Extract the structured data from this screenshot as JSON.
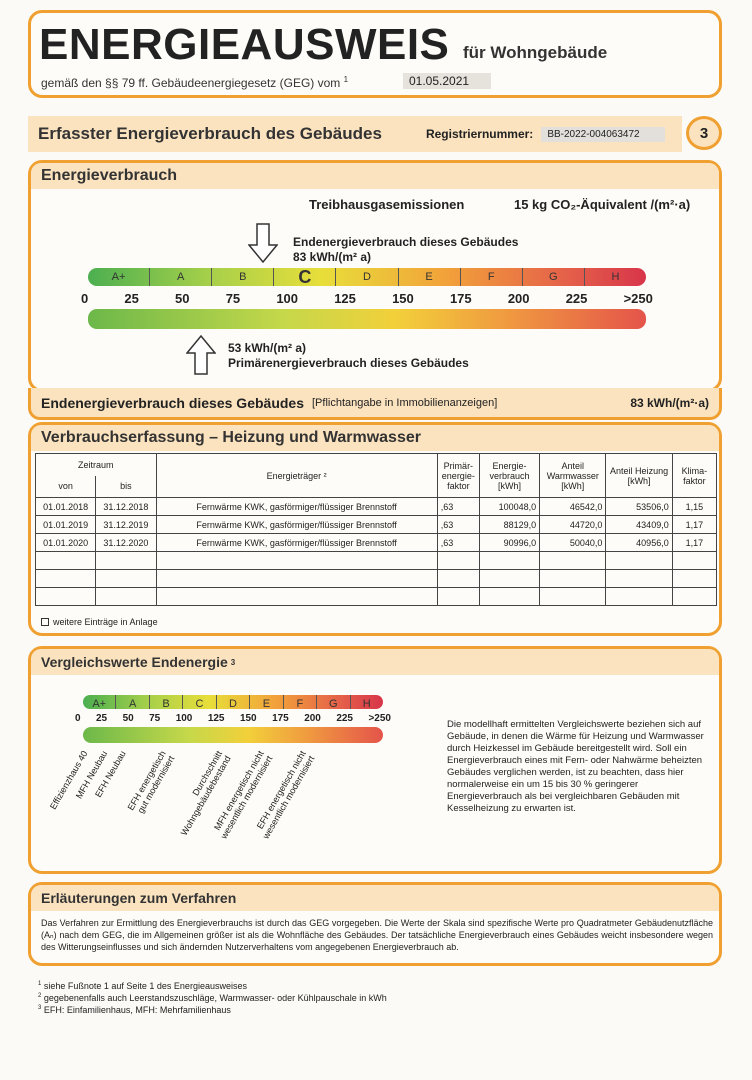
{
  "header": {
    "title": "ENERGIEAUSWEIS",
    "subtitle": "für Wohngebäude",
    "law_text": "gemäß den §§ 79 ff. Gebäudeenergiegesetz (GEG) vom",
    "law_sup": "1",
    "valid_date": "01.05.2021"
  },
  "section_bar": {
    "title": "Erfasster Energieverbrauch des Gebäudes",
    "reg_label": "Registriernummer:",
    "reg_value": "BB-2022-004063472",
    "page_number": "3"
  },
  "energy": {
    "heading": "Energieverbrauch",
    "emissions_label": "Treibhausgasemissionen",
    "emissions_value": "15 kg CO₂-Äquivalent /(m²·a)",
    "classes": [
      "A+",
      "A",
      "B",
      "C",
      "D",
      "E",
      "F",
      "G",
      "H"
    ],
    "current_class": "C",
    "scale_ticks": [
      "0",
      "25",
      "50",
      "75",
      "100",
      "125",
      "150",
      "175",
      "200",
      "225",
      ">250"
    ],
    "end_energy_label": "Endenergieverbrauch dieses Gebäudes",
    "end_energy_value": "83 kWh/(m² a)",
    "end_energy_kwh": 83,
    "primary_energy_value": "53 kWh/(m² a)",
    "primary_energy_label": "Primärenergieverbrauch dieses Gebäudes",
    "primary_energy_kwh": 53
  },
  "end_row": {
    "label": "Endenergieverbrauch dieses Gebäudes",
    "note": "[Pflichtangabe in Immobilienanzeigen]",
    "value": "83 kWh/(m²·a)"
  },
  "consumption": {
    "heading": "Verbrauchserfassung – Heizung und Warmwasser",
    "col_period": "Zeitraum",
    "col_from": "von",
    "col_to": "bis",
    "col_carrier": "Energieträger ²",
    "col_pef": "Primär-energie-faktor",
    "col_consumption": "Energie-verbrauch [kWh]",
    "col_warmwater": "Anteil Warmwasser [kWh]",
    "col_heating": "Anteil Heizung [kWh]",
    "col_climate": "Klima-faktor",
    "rows": [
      {
        "from": "01.01.2018",
        "to": "31.12.2018",
        "carrier": "Fernwärme KWK, gasförmiger/flüssiger Brennstoff",
        "pef": ",63",
        "consumption": "100048,0",
        "warmwater": "46542,0",
        "heating": "53506,0",
        "climate": "1,15"
      },
      {
        "from": "01.01.2019",
        "to": "31.12.2019",
        "carrier": "Fernwärme KWK, gasförmiger/flüssiger Brennstoff",
        "pef": ",63",
        "consumption": "88129,0",
        "warmwater": "44720,0",
        "heating": "43409,0",
        "climate": "1,17"
      },
      {
        "from": "01.01.2020",
        "to": "31.12.2020",
        "carrier": "Fernwärme KWK, gasförmiger/flüssiger Brennstoff",
        "pef": ",63",
        "consumption": "90996,0",
        "warmwater": "50040,0",
        "heating": "40956,0",
        "climate": "1,17"
      }
    ],
    "more_entries": "weitere Einträge in Anlage"
  },
  "comparison": {
    "heading": "Vergleichswerte Endenergie",
    "heading_sup": "3",
    "classes": [
      "A+",
      "A",
      "B",
      "C",
      "D",
      "E",
      "F",
      "G",
      "H"
    ],
    "ticks": [
      "0",
      "25",
      "50",
      "75",
      "100",
      "125",
      "150",
      "175",
      "200",
      "225",
      ">250"
    ],
    "labels": [
      "Effizienzhaus 40",
      "MFH Neubau",
      "EFH Neubau",
      "EFH energetisch\ngut modernisiert",
      "Durchschnitt\nWohngebäudebestand",
      "MFH energetisch nicht\nwesentlich modernisiert",
      "EFH energetisch nicht\nwesentlich modernisiert"
    ],
    "text": "Die modellhaft ermittelten Vergleichswerte beziehen sich auf Gebäude, in denen die Wärme für Heizung und Warmwasser durch Heizkessel im Gebäude bereitgestellt wird. Soll ein Energieverbrauch eines mit Fern- oder Nahwärme beheizten Gebäudes verglichen werden, ist zu beachten, dass hier normalerweise ein um 15 bis 30 % geringerer Energieverbrauch als bei vergleichbaren Gebäuden mit Kesselheizung zu erwarten ist."
  },
  "explanation": {
    "heading": "Erläuterungen zum Verfahren",
    "text": "Das Verfahren zur Ermittlung des Energieverbrauchs ist durch das GEG vorgegeben. Die Werte der Skala sind spezifische Werte pro Quadratmeter Gebäudenutzfläche (Aₙ) nach dem GEG, die im Allgemeinen größer ist als die Wohnfläche des Gebäudes. Der tatsächliche Energieverbrauch eines Gebäudes weicht insbesondere wegen des Witterungseinflusses und sich ändernden Nutzerverhaltens vom angegebenen Energieverbrauch ab."
  },
  "footnotes": [
    {
      "n": "1",
      "text": "siehe Fußnote 1 auf Seite 1 des Energieausweises"
    },
    {
      "n": "2",
      "text": "gegebenenfalls auch Leerstandszuschläge, Warmwasser- oder Kühlpauschale in kWh"
    },
    {
      "n": "3",
      "text": "EFH: Einfamilienhaus, MFH: Mehrfamilienhaus"
    }
  ]
}
